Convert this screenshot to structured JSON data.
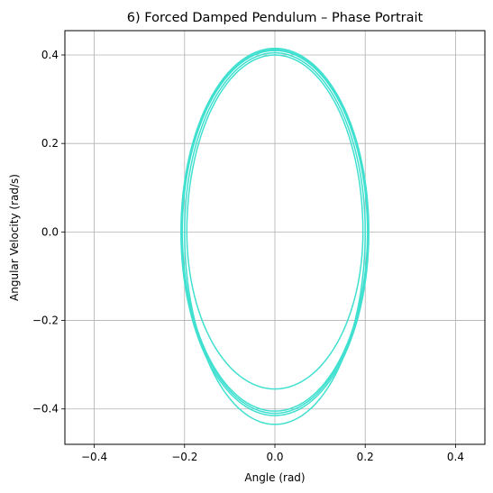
{
  "chart_data": {
    "type": "line",
    "title": "6) Forced Damped Pendulum – Phase Portrait",
    "xlabel": "Angle (rad)",
    "ylabel": "Angular Velocity (rad/s)",
    "xlim": [
      -0.465,
      0.465
    ],
    "ylim": [
      -0.48,
      0.455
    ],
    "xticks": [
      -0.4,
      -0.2,
      0.0,
      0.2,
      0.4
    ],
    "xtick_labels": [
      "−0.4",
      "−0.2",
      "0.0",
      "0.2",
      "0.4"
    ],
    "yticks": [
      -0.4,
      -0.2,
      0.0,
      0.2,
      0.4
    ],
    "ytick_labels": [
      "−0.4",
      "−0.2",
      "0.0",
      "0.2",
      "0.4"
    ],
    "grid": true,
    "legend": "none",
    "colors": {
      "series": "#40e0d0",
      "grid": "#b0b0b0",
      "axes": "#000000"
    },
    "series": [
      {
        "description_of_shape": "elliptical phase trajectory, several overlapping loops",
        "loops": [
          {
            "theta_amp": 0.208,
            "omega_top": 0.415,
            "omega_bottom": -0.415
          },
          {
            "theta_amp": 0.205,
            "omega_top": 0.41,
            "omega_bottom": -0.405
          },
          {
            "theta_amp": 0.2,
            "omega_top": 0.405,
            "omega_bottom": -0.435
          },
          {
            "theta_amp": 0.195,
            "omega_top": 0.4,
            "omega_bottom": -0.355
          },
          {
            "theta_amp": 0.206,
            "omega_top": 0.412,
            "omega_bottom": -0.41
          }
        ]
      }
    ]
  }
}
